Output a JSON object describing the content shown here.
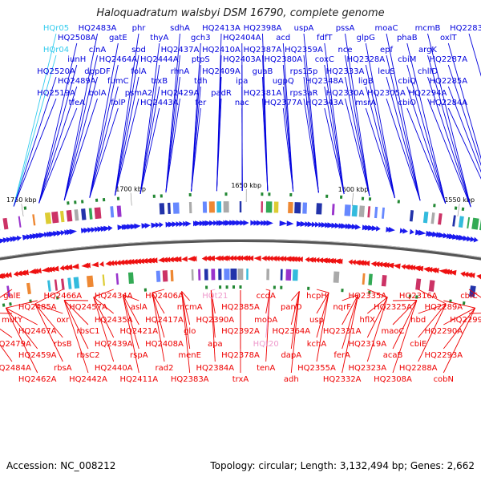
{
  "title": "Haloquadratum walsbyi DSM 16790, complete genome",
  "footer": {
    "accession": "Accession: NC_008212",
    "summary": "Topology: circular; Length: 3,132,494 bp; Genes: 2,662"
  },
  "colors": {
    "forward": "#0000dd",
    "reverse": "#ee0000",
    "rna": "#33ccee",
    "pseudo": "#ee99cc",
    "backbone": "#777777"
  },
  "kbp_markers": [
    "1750 kbp",
    "1700 kbp",
    "1650 kbp",
    "1600 kbp",
    "1550 kbp"
  ],
  "top_labels": [
    {
      "text": "HQr05",
      "kind": "rna"
    },
    {
      "text": "HQr04",
      "kind": "rna"
    },
    {
      "text": "HQ2520A",
      "kind": "forward"
    },
    {
      "text": "HQ2519A",
      "kind": "forward"
    },
    {
      "text": "HQ2508A",
      "kind": "forward"
    },
    {
      "text": "iunH",
      "kind": "forward"
    },
    {
      "text": "HQ2489A",
      "kind": "forward"
    },
    {
      "text": "tfeA",
      "kind": "forward"
    },
    {
      "text": "HQ2483A",
      "kind": "forward"
    },
    {
      "text": "cinA",
      "kind": "forward"
    },
    {
      "text": "dppDF",
      "kind": "forward"
    },
    {
      "text": "bolA",
      "kind": "forward"
    },
    {
      "text": "gatE",
      "kind": "forward"
    },
    {
      "text": "HQ2464A",
      "kind": "forward"
    },
    {
      "text": "fumC",
      "kind": "forward"
    },
    {
      "text": "folP",
      "kind": "forward"
    },
    {
      "text": "phr",
      "kind": "forward"
    },
    {
      "text": "sod",
      "kind": "forward"
    },
    {
      "text": "folA",
      "kind": "forward"
    },
    {
      "text": "psmA2",
      "kind": "forward"
    },
    {
      "text": "thyA",
      "kind": "forward"
    },
    {
      "text": "HQ2444A",
      "kind": "forward"
    },
    {
      "text": "trxB",
      "kind": "forward"
    },
    {
      "text": "HQ2443A",
      "kind": "forward"
    },
    {
      "text": "sdhA",
      "kind": "forward"
    },
    {
      "text": "HQ2437A",
      "kind": "forward"
    },
    {
      "text": "rhnA",
      "kind": "forward"
    },
    {
      "text": "HQ2429A",
      "kind": "forward"
    },
    {
      "text": "gch3",
      "kind": "forward"
    },
    {
      "text": "ptpS",
      "kind": "forward"
    },
    {
      "text": "tdh",
      "kind": "forward"
    },
    {
      "text": "fer",
      "kind": "forward"
    },
    {
      "text": "HQ2413A",
      "kind": "forward"
    },
    {
      "text": "HQ2410A",
      "kind": "forward"
    },
    {
      "text": "HQ2409A",
      "kind": "forward"
    },
    {
      "text": "padR",
      "kind": "forward"
    },
    {
      "text": "HQ2404A",
      "kind": "forward"
    },
    {
      "text": "HQ2403A",
      "kind": "forward"
    },
    {
      "text": "ipa",
      "kind": "forward"
    },
    {
      "text": "nac",
      "kind": "forward"
    },
    {
      "text": "HQ2398A",
      "kind": "forward"
    },
    {
      "text": "HQ2387A",
      "kind": "forward"
    },
    {
      "text": "guaB",
      "kind": "forward"
    },
    {
      "text": "HQ2381A",
      "kind": "forward"
    },
    {
      "text": "acd",
      "kind": "forward"
    },
    {
      "text": "HQ2380A",
      "kind": "forward"
    },
    {
      "text": "ugpQ",
      "kind": "forward"
    },
    {
      "text": "HQ2377A",
      "kind": "forward"
    },
    {
      "text": "uspA",
      "kind": "forward"
    },
    {
      "text": "HQ2359A",
      "kind": "forward"
    },
    {
      "text": "rps15p",
      "kind": "forward"
    },
    {
      "text": "rps3aR",
      "kind": "forward"
    },
    {
      "text": "fdfT",
      "kind": "forward"
    },
    {
      "text": "coxC",
      "kind": "forward"
    },
    {
      "text": "HQ2348A",
      "kind": "forward"
    },
    {
      "text": "HQ2343A",
      "kind": "forward"
    },
    {
      "text": "pssA",
      "kind": "forward"
    },
    {
      "text": "nce",
      "kind": "forward"
    },
    {
      "text": "HQ2333A",
      "kind": "forward"
    },
    {
      "text": "HQ2330A",
      "kind": "forward"
    },
    {
      "text": "glpG",
      "kind": "forward"
    },
    {
      "text": "HQ2328A",
      "kind": "forward"
    },
    {
      "text": "ligB",
      "kind": "forward"
    },
    {
      "text": "msrA",
      "kind": "forward"
    },
    {
      "text": "moaC",
      "kind": "forward"
    },
    {
      "text": "epf",
      "kind": "forward"
    },
    {
      "text": "leuS",
      "kind": "forward"
    },
    {
      "text": "HQ2305A",
      "kind": "forward"
    },
    {
      "text": "phaB",
      "kind": "forward"
    },
    {
      "text": "cbiM",
      "kind": "forward"
    },
    {
      "text": "cbiQ",
      "kind": "forward"
    },
    {
      "text": "cbiO",
      "kind": "forward"
    },
    {
      "text": "mcmB",
      "kind": "forward"
    },
    {
      "text": "argK",
      "kind": "forward"
    },
    {
      "text": "chlID",
      "kind": "forward"
    },
    {
      "text": "HQ2294A",
      "kind": "forward"
    },
    {
      "text": "oxlT",
      "kind": "forward"
    },
    {
      "text": "HQ2287A",
      "kind": "forward"
    },
    {
      "text": "HQ2285A",
      "kind": "forward"
    },
    {
      "text": "HQ2284A",
      "kind": "forward"
    },
    {
      "text": "HQ2283A",
      "kind": "forward"
    }
  ],
  "bottom_labels": [
    {
      "text": "galE",
      "kind": "reverse"
    },
    {
      "text": "mutY",
      "kind": "reverse"
    },
    {
      "text": "HQ2479A",
      "kind": "reverse"
    },
    {
      "text": "HQ2484A",
      "kind": "reverse"
    },
    {
      "text": "HQ2485A",
      "kind": "reverse"
    },
    {
      "text": "HQ2467A",
      "kind": "reverse"
    },
    {
      "text": "HQ2459A",
      "kind": "reverse"
    },
    {
      "text": "HQ2462A",
      "kind": "reverse"
    },
    {
      "text": "HQ2466A",
      "kind": "reverse"
    },
    {
      "text": "oxr",
      "kind": "reverse"
    },
    {
      "text": "rbsB",
      "kind": "reverse"
    },
    {
      "text": "rbsA",
      "kind": "reverse"
    },
    {
      "text": "HQ2457A",
      "kind": "reverse"
    },
    {
      "text": "rbsC1",
      "kind": "reverse"
    },
    {
      "text": "rbsC2",
      "kind": "reverse"
    },
    {
      "text": "HQ2442A",
      "kind": "reverse"
    },
    {
      "text": "HQ2434A",
      "kind": "reverse"
    },
    {
      "text": "HQ2435A",
      "kind": "reverse"
    },
    {
      "text": "HQ2439A",
      "kind": "reverse"
    },
    {
      "text": "HQ2440A",
      "kind": "reverse"
    },
    {
      "text": "aslA",
      "kind": "reverse"
    },
    {
      "text": "HQ2421A",
      "kind": "reverse"
    },
    {
      "text": "rspA",
      "kind": "reverse"
    },
    {
      "text": "HQ2411A",
      "kind": "reverse"
    },
    {
      "text": "HQ2406A",
      "kind": "reverse"
    },
    {
      "text": "HQ2417A",
      "kind": "reverse"
    },
    {
      "text": "HQ2408A",
      "kind": "reverse"
    },
    {
      "text": "rad2",
      "kind": "reverse"
    },
    {
      "text": "mcmA",
      "kind": "reverse"
    },
    {
      "text": "glo",
      "kind": "reverse"
    },
    {
      "text": "menE",
      "kind": "reverse"
    },
    {
      "text": "HQ2383A",
      "kind": "reverse"
    },
    {
      "text": "HQt21",
      "kind": "pseudo"
    },
    {
      "text": "HQ2390A",
      "kind": "reverse"
    },
    {
      "text": "apa",
      "kind": "reverse"
    },
    {
      "text": "HQ2384A",
      "kind": "reverse"
    },
    {
      "text": "HQ2385A",
      "kind": "reverse"
    },
    {
      "text": "HQ2392A",
      "kind": "reverse"
    },
    {
      "text": "HQ2378A",
      "kind": "reverse"
    },
    {
      "text": "trxA",
      "kind": "reverse"
    },
    {
      "text": "ccdA",
      "kind": "reverse"
    },
    {
      "text": "mobA",
      "kind": "reverse"
    },
    {
      "text": "HQt20",
      "kind": "pseudo"
    },
    {
      "text": "tenA",
      "kind": "reverse"
    },
    {
      "text": "panD",
      "kind": "reverse"
    },
    {
      "text": "HQ2364A",
      "kind": "reverse"
    },
    {
      "text": "dapA",
      "kind": "reverse"
    },
    {
      "text": "adh",
      "kind": "reverse"
    },
    {
      "text": "hcpH",
      "kind": "reverse"
    },
    {
      "text": "usp",
      "kind": "reverse"
    },
    {
      "text": "kchA",
      "kind": "reverse"
    },
    {
      "text": "HQ2355A",
      "kind": "reverse"
    },
    {
      "text": "nqrF",
      "kind": "reverse"
    },
    {
      "text": "HQ2331A",
      "kind": "reverse"
    },
    {
      "text": "ferA",
      "kind": "reverse"
    },
    {
      "text": "HQ2332A",
      "kind": "reverse"
    },
    {
      "text": "HQ2335A",
      "kind": "reverse"
    },
    {
      "text": "hflX",
      "kind": "reverse"
    },
    {
      "text": "HQ2319A",
      "kind": "reverse"
    },
    {
      "text": "HQ2323A",
      "kind": "reverse"
    },
    {
      "text": "HQ2325A",
      "kind": "reverse"
    },
    {
      "text": "maoC",
      "kind": "reverse"
    },
    {
      "text": "acaB",
      "kind": "reverse"
    },
    {
      "text": "HQ2308A",
      "kind": "reverse"
    },
    {
      "text": "HQ2316A",
      "kind": "reverse"
    },
    {
      "text": "hbd",
      "kind": "reverse"
    },
    {
      "text": "cbiE",
      "kind": "reverse"
    },
    {
      "text": "HQ2288A",
      "kind": "reverse"
    },
    {
      "text": "HQ2289A",
      "kind": "reverse"
    },
    {
      "text": "HQ2290A",
      "kind": "reverse"
    },
    {
      "text": "HQ2293A",
      "kind": "reverse"
    },
    {
      "text": "cobN",
      "kind": "reverse"
    },
    {
      "text": "cbiC",
      "kind": "reverse"
    },
    {
      "text": "HQ2299A",
      "kind": "reverse"
    }
  ]
}
